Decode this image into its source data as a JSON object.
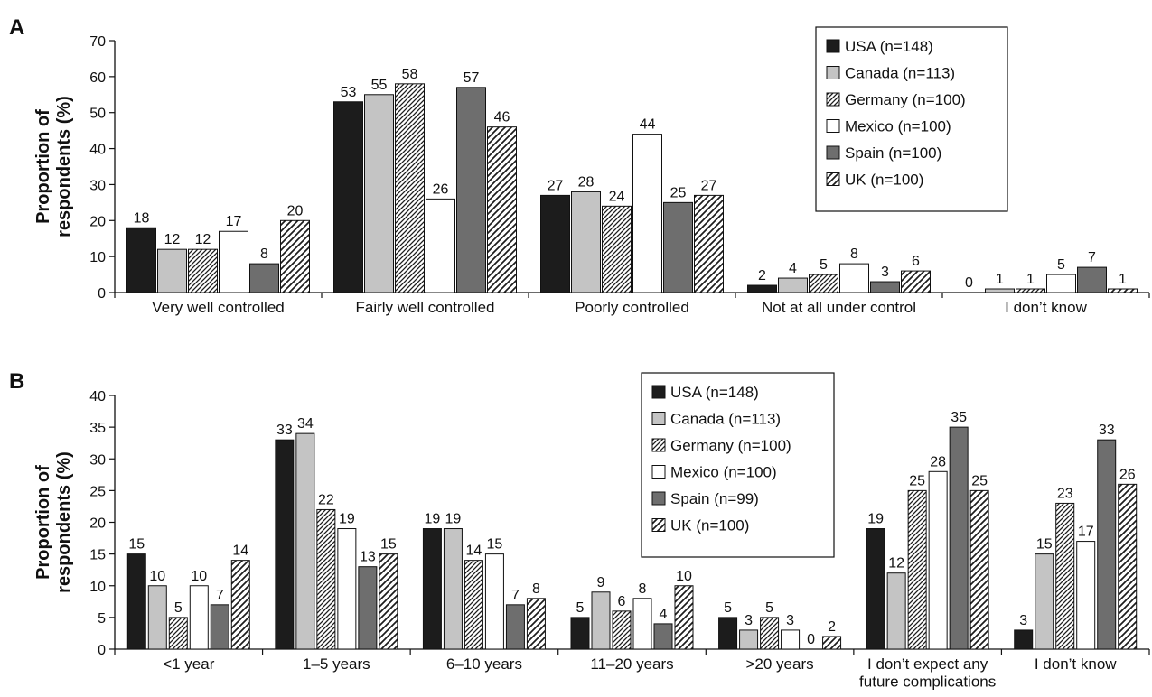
{
  "chart_data": [
    {
      "type": "bar",
      "panel_label": "A",
      "ylabel": "Proportion of respondents (%)",
      "ylim": [
        0,
        70
      ],
      "yticks": [
        0,
        10,
        20,
        30,
        40,
        50,
        60,
        70
      ],
      "categories": [
        [
          "Very well controlled"
        ],
        [
          "Fairly well controlled"
        ],
        [
          "Poorly controlled"
        ],
        [
          "Not at all under control"
        ],
        [
          "I don’t know"
        ]
      ],
      "legend_position": "top-right",
      "series": [
        {
          "name": "USA (n=148)",
          "style": "solid-dark",
          "color": "#1c1c1c",
          "values": [
            18,
            53,
            27,
            2,
            0
          ]
        },
        {
          "name": "Canada (n=113)",
          "style": "solid-light",
          "color": "#c4c4c4",
          "values": [
            12,
            55,
            28,
            4,
            1
          ]
        },
        {
          "name": "Germany (n=100)",
          "style": "hatch-dense",
          "color": "#1c1c1c",
          "values": [
            12,
            58,
            24,
            5,
            1
          ]
        },
        {
          "name": "Mexico (n=100)",
          "style": "white",
          "color": "#ffffff",
          "values": [
            17,
            26,
            44,
            8,
            5
          ]
        },
        {
          "name": "Spain (n=100)",
          "style": "solid-mid",
          "color": "#6e6e6e",
          "values": [
            8,
            57,
            25,
            3,
            7
          ]
        },
        {
          "name": "UK (n=100)",
          "style": "hatch-sparse",
          "color": "#1c1c1c",
          "values": [
            20,
            46,
            27,
            6,
            1
          ]
        }
      ]
    },
    {
      "type": "bar",
      "panel_label": "B",
      "ylabel": "Proportion of respondents (%)",
      "ylim": [
        0,
        40
      ],
      "yticks": [
        0,
        5,
        10,
        15,
        20,
        25,
        30,
        35,
        40
      ],
      "categories": [
        [
          "<1 year"
        ],
        [
          "1–5 years"
        ],
        [
          "6–10 years"
        ],
        [
          "11–20 years"
        ],
        [
          ">20 years"
        ],
        [
          "I don’t expect any",
          "future complications"
        ],
        [
          "I don’t know"
        ]
      ],
      "legend_position": "top-right",
      "series": [
        {
          "name": "USA (n=148)",
          "style": "solid-dark",
          "color": "#1c1c1c",
          "values": [
            15,
            33,
            19,
            5,
            5,
            19,
            3
          ]
        },
        {
          "name": "Canada (n=113)",
          "style": "solid-light",
          "color": "#c4c4c4",
          "values": [
            10,
            34,
            19,
            9,
            3,
            12,
            15
          ]
        },
        {
          "name": "Germany (n=100)",
          "style": "hatch-dense",
          "color": "#1c1c1c",
          "values": [
            5,
            22,
            14,
            6,
            5,
            25,
            23
          ]
        },
        {
          "name": "Mexico (n=100)",
          "style": "white",
          "color": "#ffffff",
          "values": [
            10,
            19,
            15,
            8,
            3,
            28,
            17
          ]
        },
        {
          "name": "Spain (n=99)",
          "style": "solid-mid",
          "color": "#6e6e6e",
          "values": [
            7,
            13,
            7,
            4,
            0,
            35,
            33
          ]
        },
        {
          "name": "UK (n=100)",
          "style": "hatch-sparse",
          "color": "#1c1c1c",
          "values": [
            14,
            15,
            8,
            10,
            2,
            25,
            26
          ]
        }
      ]
    }
  ]
}
